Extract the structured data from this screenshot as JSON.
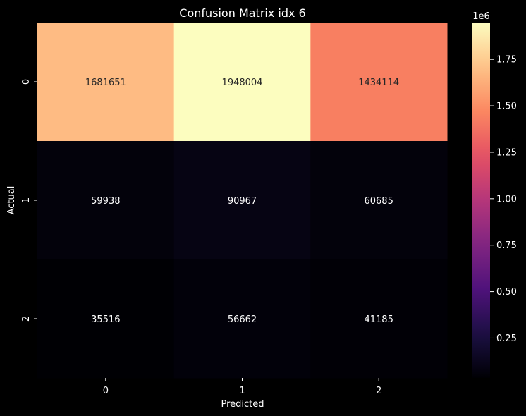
{
  "chart_data": {
    "type": "heatmap",
    "title": "Confusion Matrix idx 6",
    "xlabel": "Predicted",
    "ylabel": "Actual",
    "x_categories": [
      "0",
      "1",
      "2"
    ],
    "y_categories": [
      "0",
      "1",
      "2"
    ],
    "values": [
      [
        1681651,
        1948004,
        1434114
      ],
      [
        59938,
        90967,
        60685
      ],
      [
        35516,
        56662,
        41185
      ]
    ],
    "labels": [
      [
        "1681651",
        "1948004",
        "1434114"
      ],
      [
        "59938",
        "90967",
        "60685"
      ],
      [
        "35516",
        "56662",
        "41185"
      ]
    ],
    "colormap": "magma",
    "colorbar": {
      "range": [
        35516,
        1948004
      ],
      "offset_label": "1e6",
      "ticks": [
        0.25,
        0.5,
        0.75,
        1.0,
        1.25,
        1.5,
        1.75
      ],
      "tick_labels": [
        "0.25",
        "0.50",
        "0.75",
        "1.00",
        "1.25",
        "1.50",
        "1.75"
      ]
    },
    "grid": false,
    "background": "#000000",
    "text_color": "#ffffff"
  }
}
